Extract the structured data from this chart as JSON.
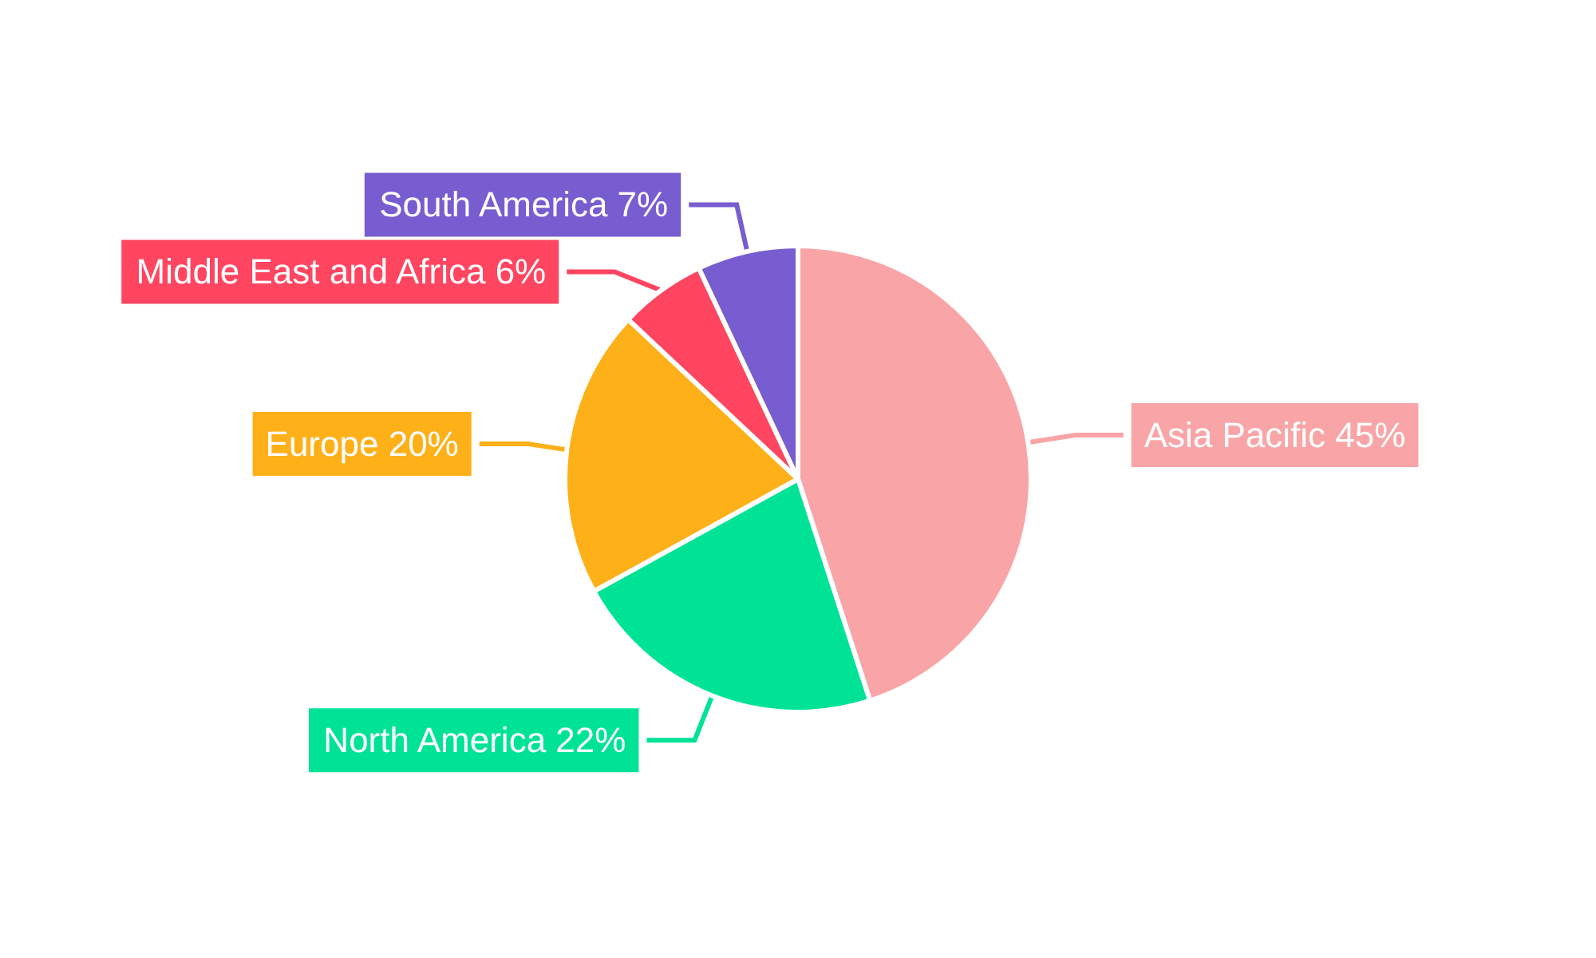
{
  "chart_data": {
    "type": "pie",
    "categories": [
      "Asia Pacific",
      "North America",
      "Europe",
      "Middle East and Africa",
      "South America"
    ],
    "values": [
      45,
      22,
      20,
      6,
      7
    ],
    "colors": [
      "#f9a5a7",
      "#00e396",
      "#feb019",
      "#ff4560",
      "#775dd0"
    ],
    "value_labels": [
      "45%",
      "22%",
      "20%",
      "6%",
      "7%"
    ]
  }
}
